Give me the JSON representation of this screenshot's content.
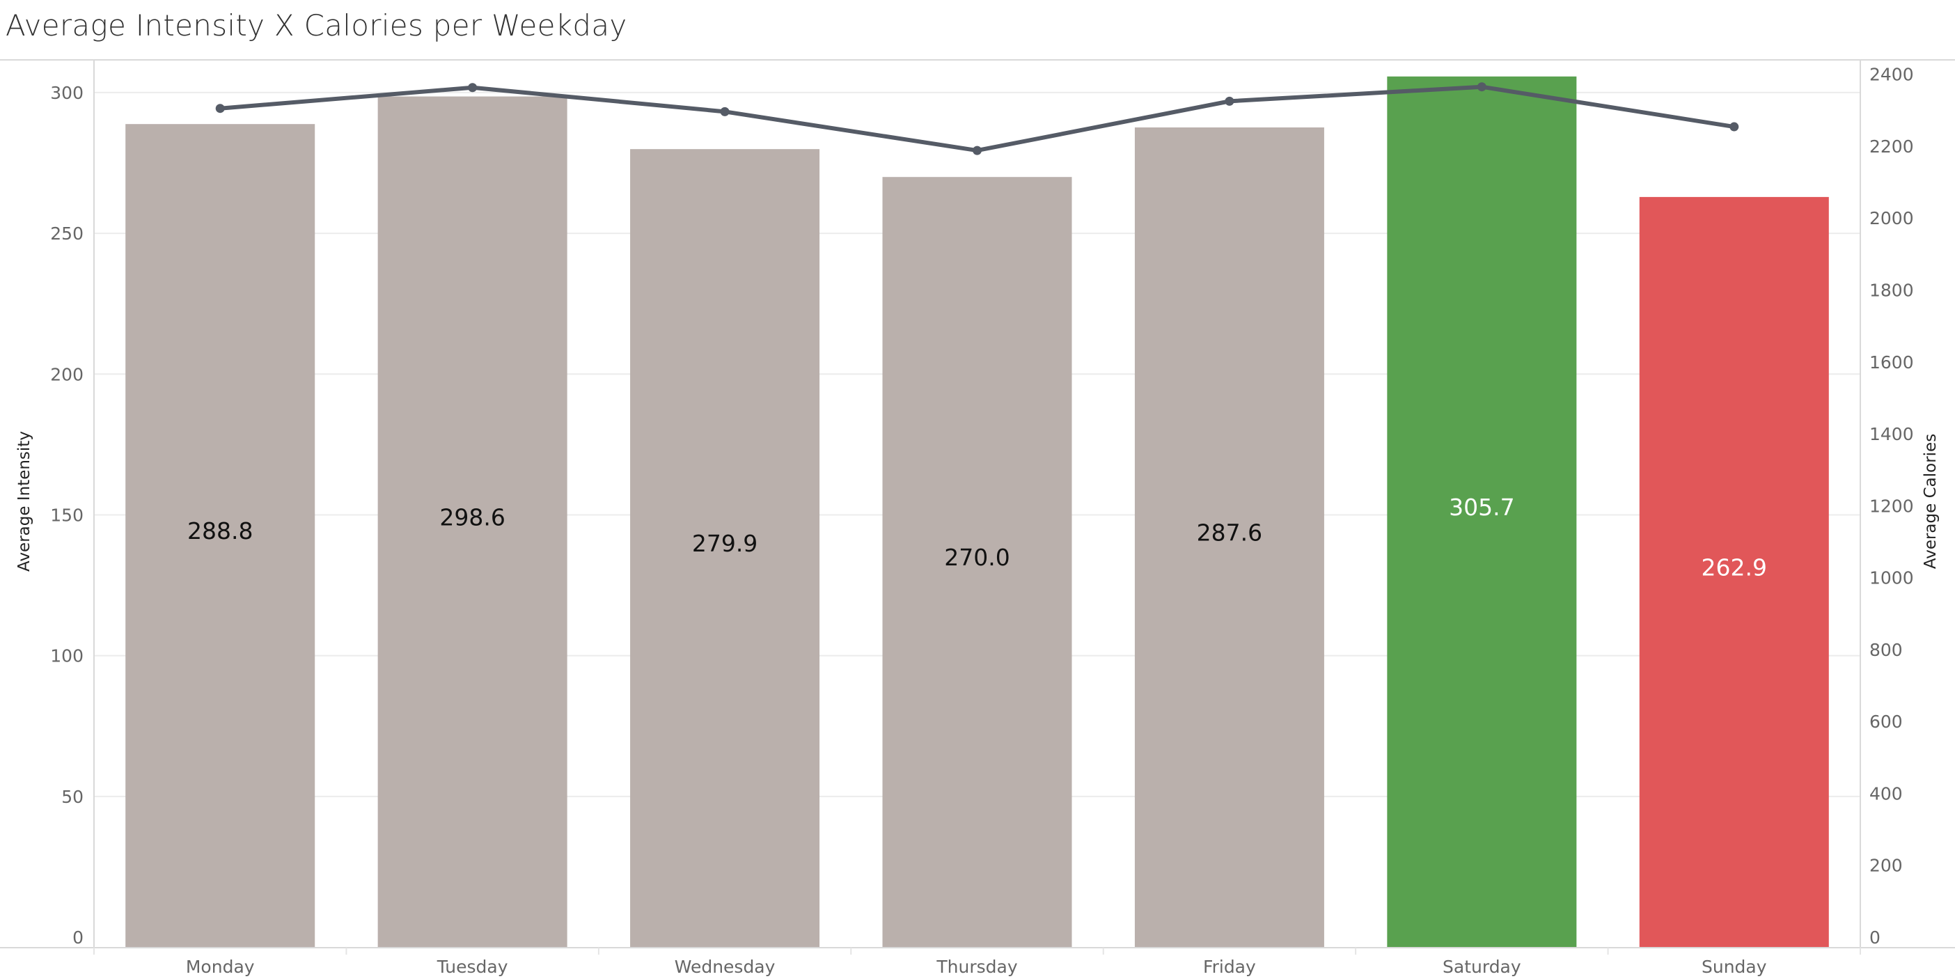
{
  "chart_data": {
    "type": "bar",
    "title": "Average Intensity X Calories per Weekday",
    "categories": [
      "Monday",
      "Tuesday",
      "Wednesday",
      "Thursday",
      "Friday",
      "Saturday",
      "Sunday"
    ],
    "series": [
      {
        "name": "Average Intensity",
        "kind": "bar",
        "axis": "left",
        "values": [
          288.8,
          298.6,
          279.9,
          270.0,
          287.6,
          305.7,
          262.9
        ],
        "data_labels": [
          "288.8",
          "298.6",
          "279.9",
          "270.0",
          "287.6",
          "305.7",
          "262.9"
        ]
      },
      {
        "name": "Average Calories",
        "kind": "line",
        "axis": "right",
        "values": [
          2305,
          2363,
          2296,
          2188,
          2325,
          2365,
          2254
        ]
      }
    ],
    "bar_colors": [
      "#bab0ac",
      "#bab0ac",
      "#bab0ac",
      "#bab0ac",
      "#bab0ac",
      "#59a14f",
      "#e15759"
    ],
    "label_colors": [
      "#111111",
      "#111111",
      "#111111",
      "#111111",
      "#111111",
      "#ffffff",
      "#ffffff"
    ],
    "line_color": "#555b66",
    "y_left": {
      "label": "Average Intensity",
      "lim": [
        0,
        320
      ],
      "ticks": [
        0,
        50,
        100,
        150,
        200,
        250,
        300
      ]
    },
    "y_right": {
      "label": "Average Calories",
      "lim": [
        0,
        2500
      ],
      "ticks": [
        0,
        200,
        400,
        600,
        800,
        1000,
        1200,
        1400,
        1600,
        1800,
        2000,
        2200,
        2400
      ]
    },
    "xlabel": "",
    "grid": true,
    "legend": "none"
  }
}
